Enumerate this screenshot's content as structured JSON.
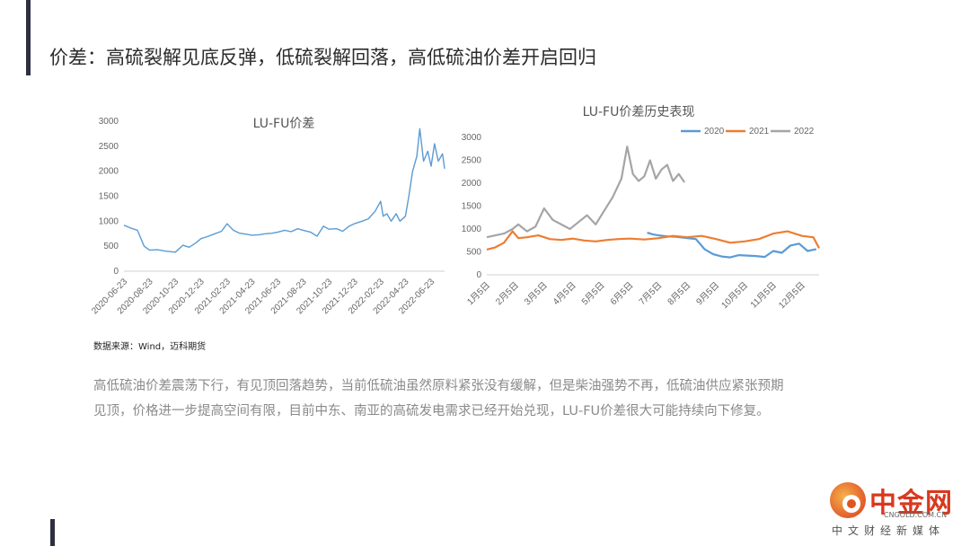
{
  "title": "价差：高硫裂解见底反弹，低硫裂解回落，高低硫油价差开启回归",
  "source": "数据来源：Wind，迈科期货",
  "body_text": "高低硫油价差震荡下行，有见顶回落趋势，当前低硫油虽然原料紧张没有缓解，但是柴油强势不再，低硫油供应紧张预期见顶，价格进一步提高空间有限，目前中东、南亚的高硫发电需求已经开始兑现，LU-FU价差很大可能持续向下修复。",
  "logo": {
    "cn": "中金网",
    "en": "CNGOLD.COM.CN",
    "sub": "中文财经新媒体"
  },
  "colors": {
    "left_line": "#5b9bd5",
    "y2020": "#5b9bd5",
    "y2021": "#ed7d31",
    "y2022": "#a5a5a5",
    "accent": "#2e3040"
  },
  "chart_data": [
    {
      "type": "line",
      "title": "LU-FU价差",
      "x_ticks": [
        "2020-06-23",
        "2020-08-23",
        "2020-10-23",
        "2020-12-23",
        "2021-02-23",
        "2021-04-23",
        "2021-06-23",
        "2021-08-23",
        "2021-10-23",
        "2021-12-23",
        "2022-02-23",
        "2022-04-23",
        "2022-06-23"
      ],
      "ylim": [
        0,
        3000
      ],
      "y_ticks": [
        0,
        500,
        1000,
        1500,
        2000,
        2500,
        3000
      ],
      "series": [
        {
          "x": [
            "2020-06-23",
            "2020-07-10",
            "2020-07-25",
            "2020-08-10",
            "2020-08-23",
            "2020-09-10",
            "2020-10-01",
            "2020-10-23",
            "2020-11-10",
            "2020-11-25",
            "2020-12-10",
            "2020-12-23",
            "2021-01-10",
            "2021-01-25",
            "2021-02-10",
            "2021-02-23",
            "2021-03-10",
            "2021-03-25",
            "2021-04-10",
            "2021-04-23",
            "2021-05-10",
            "2021-05-25",
            "2021-06-10",
            "2021-06-23",
            "2021-07-10",
            "2021-07-25",
            "2021-08-10",
            "2021-08-23",
            "2021-09-10",
            "2021-09-25",
            "2021-10-10",
            "2021-10-23",
            "2021-11-10",
            "2021-11-25",
            "2021-12-10",
            "2021-12-23",
            "2022-01-10",
            "2022-01-25",
            "2022-02-10",
            "2022-02-23",
            "2022-03-01",
            "2022-03-10",
            "2022-03-20",
            "2022-04-01",
            "2022-04-10",
            "2022-04-23",
            "2022-05-01",
            "2022-05-10",
            "2022-05-20",
            "2022-05-27",
            "2022-06-05",
            "2022-06-15",
            "2022-06-23",
            "2022-07-01",
            "2022-07-10",
            "2022-07-20",
            "2022-07-25"
          ],
          "values": [
            920,
            860,
            820,
            500,
            420,
            430,
            400,
            380,
            520,
            480,
            560,
            650,
            700,
            750,
            800,
            950,
            820,
            760,
            740,
            720,
            730,
            750,
            760,
            780,
            820,
            790,
            850,
            820,
            780,
            700,
            900,
            840,
            850,
            800,
            900,
            950,
            1000,
            1050,
            1200,
            1400,
            1100,
            1150,
            1000,
            1150,
            1000,
            1100,
            1500,
            2000,
            2300,
            2850,
            2200,
            2400,
            2100,
            2550,
            2200,
            2350,
            2050
          ]
        }
      ]
    },
    {
      "type": "line",
      "title": "LU-FU价差历史表现",
      "x_ticks": [
        "1月5日",
        "2月5日",
        "3月5日",
        "4月5日",
        "5月5日",
        "6月5日",
        "7月5日",
        "8月5日",
        "9月5日",
        "10月5日",
        "11月5日",
        "12月5日"
      ],
      "ylim": [
        0,
        3000
      ],
      "y_ticks": [
        0,
        500,
        1000,
        1500,
        2000,
        2500,
        3000
      ],
      "legend_position": "top-right",
      "series": [
        {
          "name": "2020",
          "x": [
            6.6,
            6.8,
            7.0,
            7.3,
            7.6,
            8.0,
            8.3,
            8.6,
            8.9,
            9.2,
            9.5,
            9.8,
            10.1,
            10.4,
            10.7,
            11.0,
            11.3,
            11.6,
            11.9,
            12.2,
            12.5
          ],
          "values": [
            920,
            880,
            860,
            840,
            830,
            800,
            780,
            560,
            450,
            400,
            380,
            430,
            420,
            410,
            390,
            520,
            480,
            640,
            680,
            520,
            560
          ]
        },
        {
          "name": "2021",
          "x": [
            1.0,
            1.3,
            1.6,
            1.9,
            2.1,
            2.4,
            2.8,
            3.2,
            3.6,
            4.0,
            4.4,
            4.8,
            5.2,
            5.6,
            6.0,
            6.5,
            7.0,
            7.5,
            8.0,
            8.5,
            9.0,
            9.5,
            10.0,
            10.5,
            11.0,
            11.5,
            12.0,
            12.4,
            12.6
          ],
          "values": [
            550,
            600,
            700,
            950,
            800,
            820,
            860,
            780,
            760,
            790,
            750,
            730,
            760,
            780,
            790,
            770,
            800,
            850,
            820,
            850,
            780,
            700,
            730,
            780,
            900,
            950,
            850,
            820,
            580
          ]
        },
        {
          "name": "2022",
          "x": [
            1.0,
            1.3,
            1.6,
            1.9,
            2.1,
            2.4,
            2.7,
            3.0,
            3.3,
            3.6,
            3.9,
            4.2,
            4.5,
            4.8,
            5.1,
            5.4,
            5.7,
            5.9,
            6.1,
            6.3,
            6.5,
            6.7,
            6.9,
            7.1,
            7.3,
            7.5,
            7.7,
            7.9
          ],
          "values": [
            820,
            860,
            900,
            1000,
            1100,
            950,
            1050,
            1450,
            1200,
            1100,
            1000,
            1150,
            1300,
            1100,
            1400,
            1700,
            2100,
            2800,
            2200,
            2050,
            2150,
            2500,
            2100,
            2300,
            2400,
            2050,
            2200,
            2020
          ]
        }
      ]
    }
  ]
}
